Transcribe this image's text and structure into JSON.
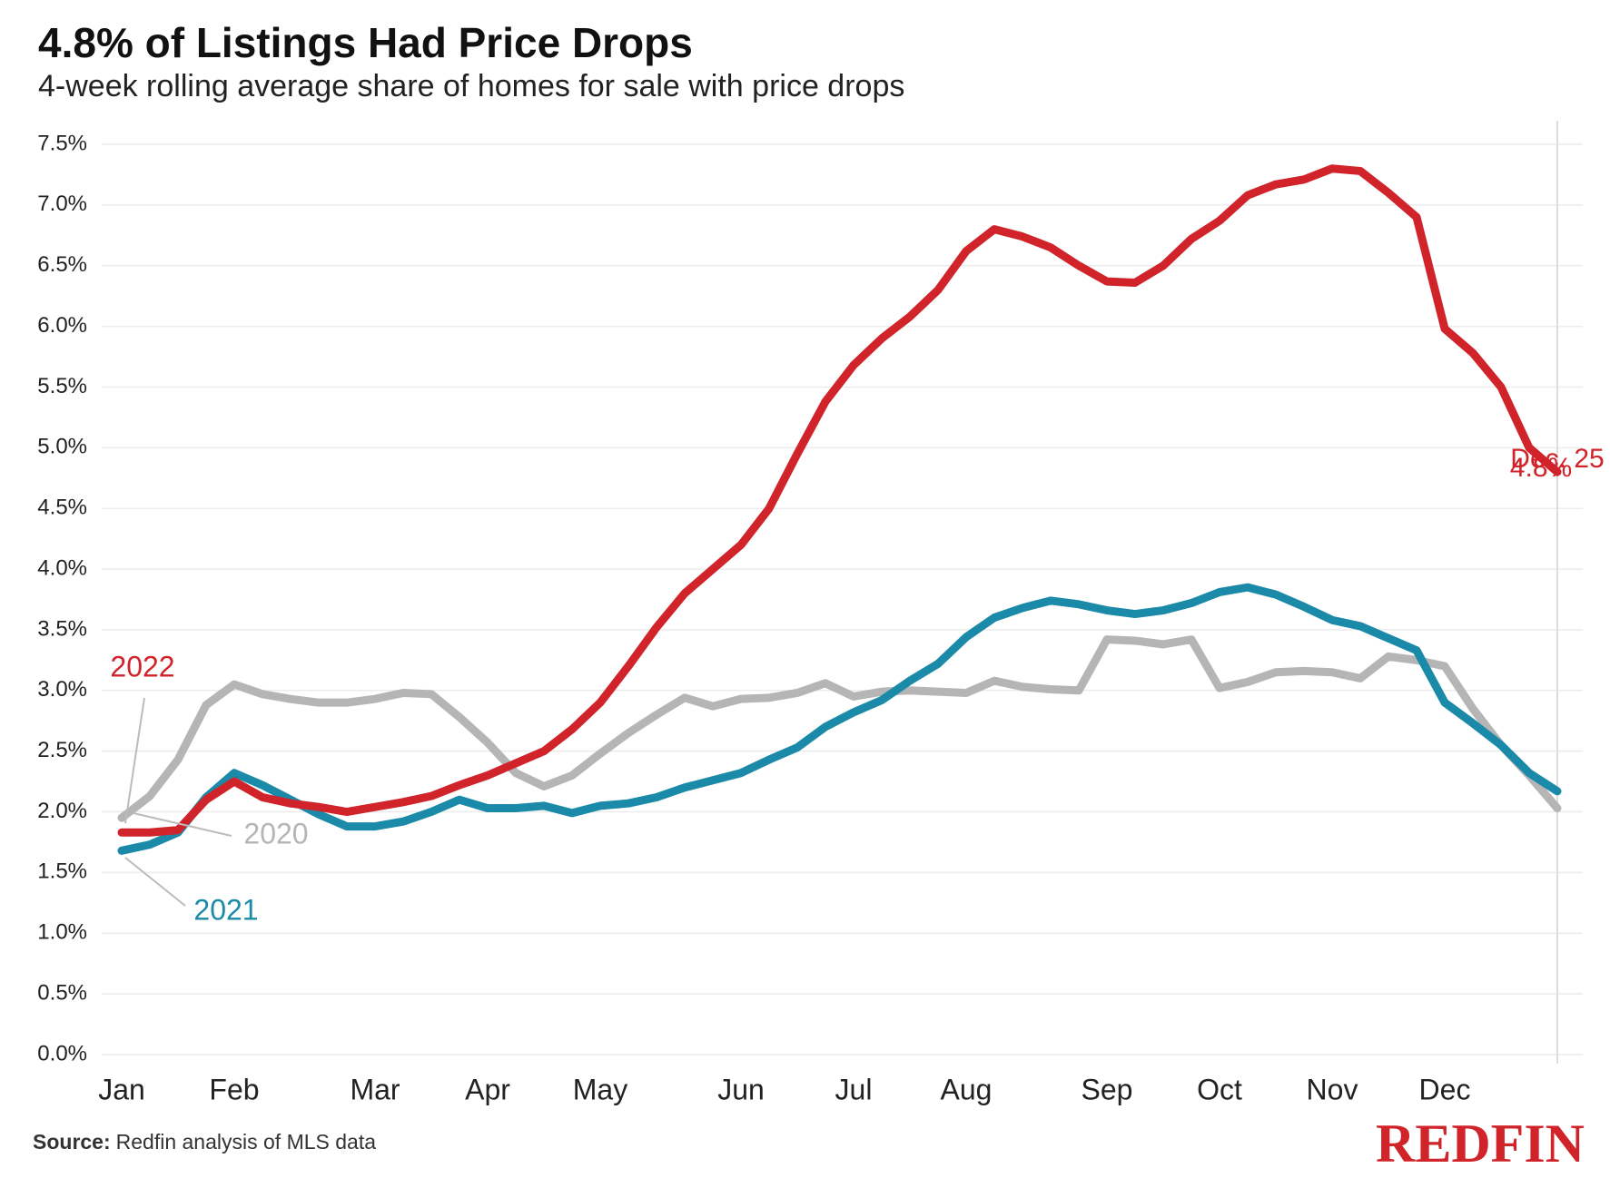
{
  "chart_data": {
    "type": "line",
    "title": "4.8% of Listings Had Price Drops",
    "subtitle": "4-week rolling average share of homes for sale with price drops",
    "source_label": "Source:",
    "source": "Redfin analysis of MLS data",
    "logo": "REDFIN",
    "categories": [
      "Jan",
      null,
      null,
      null,
      "Feb",
      null,
      null,
      null,
      null,
      "Mar",
      null,
      null,
      null,
      "Apr",
      null,
      null,
      null,
      "May",
      null,
      null,
      null,
      null,
      "Jun",
      null,
      null,
      null,
      "Jul",
      null,
      null,
      null,
      "Aug",
      null,
      null,
      null,
      null,
      "Sep",
      null,
      null,
      null,
      "Oct",
      null,
      null,
      null,
      "Nov",
      null,
      null,
      null,
      "Dec",
      null,
      null,
      null,
      null
    ],
    "series": [
      {
        "name": "2020",
        "color": "#b5b5b5",
        "values": [
          1.95,
          2.13,
          2.43,
          2.88,
          3.05,
          2.97,
          2.93,
          2.9,
          2.9,
          2.93,
          2.98,
          2.97,
          2.78,
          2.57,
          2.32,
          2.21,
          2.3,
          2.48,
          2.65,
          2.8,
          2.94,
          2.87,
          2.93,
          2.94,
          2.98,
          3.06,
          2.95,
          2.99,
          3.0,
          2.99,
          2.98,
          3.08,
          3.03,
          3.01,
          3.0,
          3.42,
          3.41,
          3.38,
          3.42,
          3.02,
          3.07,
          3.15,
          3.16,
          3.15,
          3.1,
          3.28,
          3.25,
          3.2,
          2.85,
          2.55,
          2.3,
          2.03
        ]
      },
      {
        "name": "2021",
        "color": "#1b8aa8",
        "values": [
          1.68,
          1.73,
          1.83,
          2.12,
          2.32,
          2.22,
          2.1,
          1.98,
          1.88,
          1.88,
          1.92,
          2.0,
          2.1,
          2.03,
          2.03,
          2.05,
          1.99,
          2.05,
          2.07,
          2.12,
          2.2,
          2.26,
          2.32,
          2.43,
          2.53,
          2.7,
          2.82,
          2.92,
          3.08,
          3.22,
          3.44,
          3.6,
          3.68,
          3.74,
          3.71,
          3.66,
          3.63,
          3.66,
          3.72,
          3.81,
          3.85,
          3.79,
          3.69,
          3.58,
          3.53,
          3.43,
          3.33,
          2.9,
          2.73,
          2.55,
          2.32,
          2.17
        ]
      },
      {
        "name": "2022",
        "color": "#d0232a",
        "values": [
          1.83,
          1.83,
          1.85,
          2.1,
          2.25,
          2.12,
          2.07,
          2.04,
          2.0,
          2.04,
          2.08,
          2.13,
          2.22,
          2.3,
          2.4,
          2.5,
          2.68,
          2.9,
          3.2,
          3.52,
          3.8,
          4.0,
          4.2,
          4.5,
          4.95,
          5.38,
          5.68,
          5.9,
          6.08,
          6.3,
          6.62,
          6.8,
          6.74,
          6.65,
          6.5,
          6.37,
          6.36,
          6.5,
          6.72,
          6.87,
          7.08,
          7.17,
          7.21,
          7.3,
          7.28,
          7.1,
          6.9,
          5.98,
          5.78,
          5.5,
          5.0,
          4.8
        ],
        "value_labels": {
          "51": "4.8%"
        }
      }
    ],
    "annotations": [
      "Dec. 25"
    ],
    "ylim": [
      0,
      7.5
    ],
    "yticks": [
      {
        "value": 0,
        "label": "0.0%"
      },
      {
        "value": 0.5,
        "label": "0.5%"
      },
      {
        "value": 1,
        "label": "1.0%"
      },
      {
        "value": 1.5,
        "label": "1.5%"
      },
      {
        "value": 2,
        "label": "2.0%"
      },
      {
        "value": 2.5,
        "label": "2.5%"
      },
      {
        "value": 3,
        "label": "3.0%"
      },
      {
        "value": 3.5,
        "label": "3.5%"
      },
      {
        "value": 4,
        "label": "4.0%"
      },
      {
        "value": 4.5,
        "label": "4.5%"
      },
      {
        "value": 5,
        "label": "5.0%"
      },
      {
        "value": 5.5,
        "label": "5.5%"
      },
      {
        "value": 6,
        "label": "6.0%"
      },
      {
        "value": 6.5,
        "label": "6.5%"
      },
      {
        "value": 7,
        "label": "7.0%"
      },
      {
        "value": 7.5,
        "label": "7.5%"
      }
    ],
    "grid": true
  }
}
